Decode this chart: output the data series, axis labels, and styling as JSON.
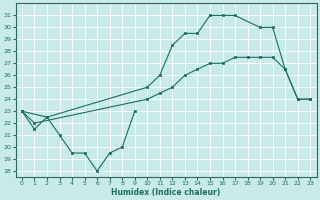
{
  "xlabel": "Humidex (Indice chaleur)",
  "xlim": [
    -0.5,
    23.5
  ],
  "ylim": [
    17.5,
    32
  ],
  "yticks": [
    18,
    19,
    20,
    21,
    22,
    23,
    24,
    25,
    26,
    27,
    28,
    29,
    30,
    31
  ],
  "xticks": [
    0,
    1,
    2,
    3,
    4,
    5,
    6,
    7,
    8,
    9,
    10,
    11,
    12,
    13,
    14,
    15,
    16,
    17,
    18,
    19,
    20,
    21,
    22,
    23
  ],
  "color": "#1a6e64",
  "bg_color": "#c8eae8",
  "line1_x": [
    0,
    1,
    2,
    3,
    4,
    5,
    6,
    7,
    8,
    9
  ],
  "line1_y": [
    23,
    21.5,
    22.5,
    21,
    19.5,
    19.5,
    18,
    19.5,
    20,
    23
  ],
  "line2_x": [
    0,
    2,
    10,
    11,
    12,
    13,
    14,
    15,
    16,
    17,
    19,
    20,
    21,
    22,
    23
  ],
  "line2_y": [
    23,
    22.5,
    25,
    26,
    28.5,
    29.5,
    29.5,
    31,
    31,
    31,
    30,
    30,
    26.5,
    24,
    24
  ],
  "line3_x": [
    0,
    1,
    10,
    11,
    12,
    13,
    14,
    15,
    16,
    17,
    18,
    19,
    20,
    21,
    22,
    23
  ],
  "line3_y": [
    23,
    22,
    24,
    24.5,
    25,
    26,
    26.5,
    27,
    27,
    27.5,
    27.5,
    27.5,
    27.5,
    26.5,
    24,
    24
  ],
  "grid_color": "#b0d0cc",
  "spine_color": "#336666"
}
